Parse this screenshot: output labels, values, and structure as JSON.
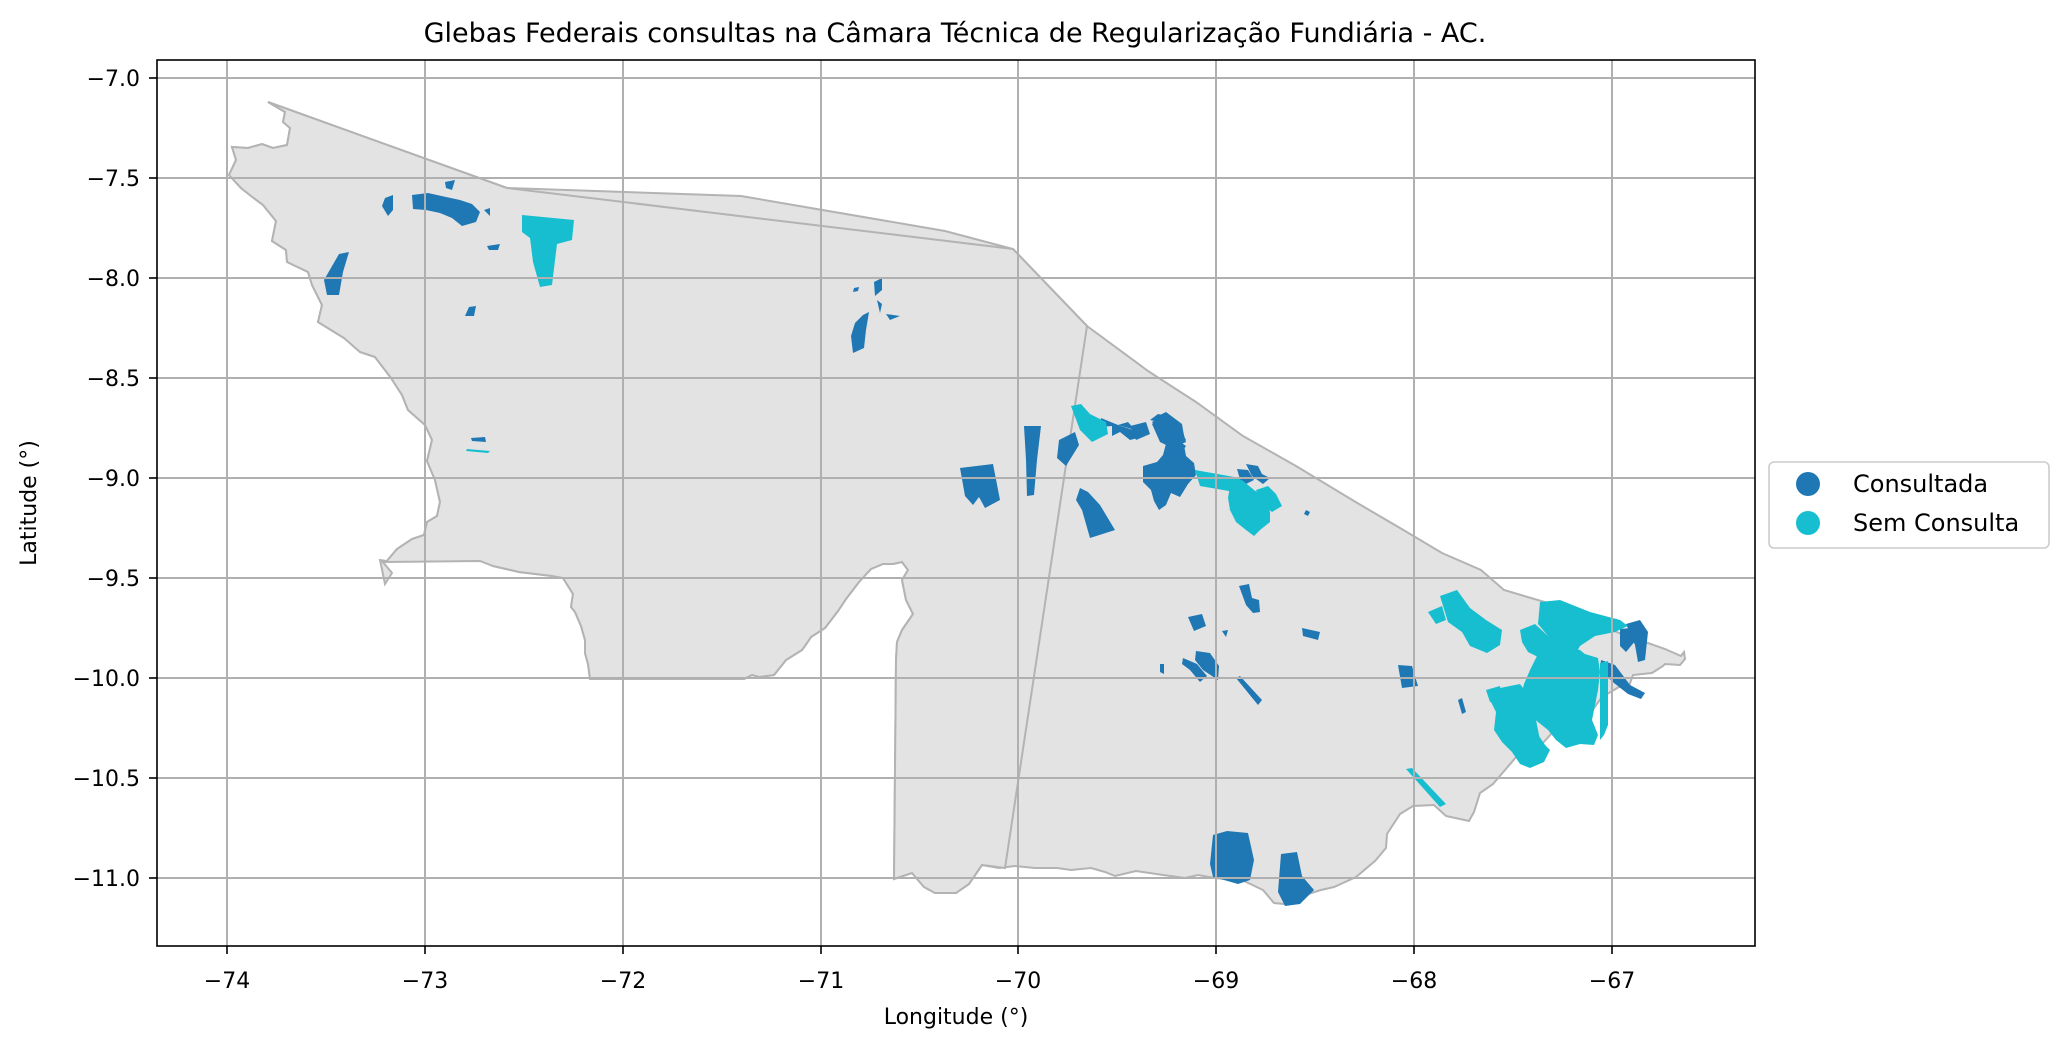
{
  "map": {
    "title": "Glebas Federais consultas na Câmara Técnica de Regularização Fundiária - AC.",
    "xlabel": "Longitude (°)",
    "ylabel": "Latitude (°)",
    "x_ticks": [
      "−74",
      "−73",
      "−72",
      "−71",
      "−70",
      "−69",
      "−68",
      "−67"
    ],
    "y_ticks": [
      "−7.0",
      "−7.5",
      "−8.0",
      "−8.5",
      "−9.0",
      "−9.5",
      "−10.0",
      "−10.5",
      "−11.0"
    ],
    "x_range": [
      -74.35,
      -66.28
    ],
    "y_range": [
      -11.34,
      -6.91
    ],
    "grid": true,
    "legend_placement": "right",
    "colors": {
      "state_fill": "#e3e3e3",
      "state_edge": "#b3b3b3",
      "consultada": "#1f77b4",
      "sem_consulta": "#17becf",
      "grid": "#b0b0b0"
    },
    "legend": [
      {
        "label": "Consultada",
        "color": "#1f77b4"
      },
      {
        "label": "Sem Consulta",
        "color": "#17becf"
      }
    ]
  }
}
